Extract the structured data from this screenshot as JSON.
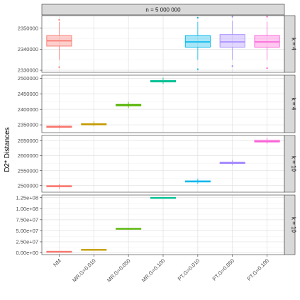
{
  "chart_data": {
    "type": "boxplot",
    "title": "n = 5 000 000",
    "ylabel": "D2* Distances",
    "xlabel": "",
    "categories": [
      "NM",
      "MR.G=0.010",
      "MR.G=0.050",
      "MR.G=0.100",
      "PT.G=0.010",
      "PT.G=0.050",
      "PT.G=0.100"
    ],
    "colors": [
      "#F8766D",
      "#C49A00",
      "#53B400",
      "#00C094",
      "#00B6EB",
      "#A58AFF",
      "#FB61D7"
    ],
    "grid": true,
    "legend": "none",
    "panels": [
      {
        "strip": "k = 4",
        "ylim": [
          2329000,
          2356000
        ],
        "yticks": [
          {
            "value": 2330000,
            "label": "2330000"
          },
          {
            "value": 2340000,
            "label": "2340000"
          },
          {
            "value": 2350000,
            "label": "2350000"
          }
        ],
        "boxes": [
          {
            "category": "NM",
            "low": 2335000,
            "q1": 2341500,
            "median": 2344000,
            "q3": 2346500,
            "high": 2353000,
            "outliers": [
              2354000,
              2331500
            ]
          },
          {
            "category": "PT.G=0.010",
            "low": 2335000,
            "q1": 2341000,
            "median": 2343500,
            "q3": 2346500,
            "high": 2353000,
            "outliers": [
              2355000,
              2330500
            ]
          },
          {
            "category": "PT.G=0.050",
            "low": 2335000,
            "q1": 2341000,
            "median": 2343500,
            "q3": 2347000,
            "high": 2353500,
            "outliers": [
              2355500,
              2332000
            ]
          },
          {
            "category": "PT.G=0.100",
            "low": 2335000,
            "q1": 2341000,
            "median": 2343500,
            "q3": 2346500,
            "high": 2353000,
            "outliers": [
              2355500,
              2331000
            ]
          }
        ]
      },
      {
        "strip": "k = 4",
        "ylim": [
          2325000,
          2510000
        ],
        "yticks": [
          {
            "value": 2350000,
            "label": "2350000"
          },
          {
            "value": 2400000,
            "label": "2400000"
          },
          {
            "value": 2450000,
            "label": "2450000"
          },
          {
            "value": 2500000,
            "label": "2500000"
          }
        ],
        "boxes": [
          {
            "category": "NM",
            "low": 2338000,
            "q1": 2342000,
            "median": 2344000,
            "q3": 2346000,
            "high": 2350000,
            "outliers": []
          },
          {
            "category": "MR.G=0.010",
            "low": 2346000,
            "q1": 2350000,
            "median": 2352000,
            "q3": 2354000,
            "high": 2362000,
            "outliers": []
          },
          {
            "category": "MR.G=0.050",
            "low": 2404000,
            "q1": 2411000,
            "median": 2414000,
            "q3": 2416000,
            "high": 2424000,
            "outliers": []
          },
          {
            "category": "MR.G=0.100",
            "low": 2482000,
            "q1": 2488000,
            "median": 2490000,
            "q3": 2493000,
            "high": 2502000,
            "outliers": []
          }
        ]
      },
      {
        "strip": "k = 10",
        "ylim": [
          2478000,
          2668000
        ],
        "yticks": [
          {
            "value": 2500000,
            "label": "2500000"
          },
          {
            "value": 2550000,
            "label": "2550000"
          },
          {
            "value": 2600000,
            "label": "2600000"
          },
          {
            "value": 2650000,
            "label": "2650000"
          }
        ],
        "boxes": [
          {
            "category": "NM",
            "low": 2490000,
            "q1": 2496000,
            "median": 2498000,
            "q3": 2500000,
            "high": 2506000,
            "outliers": []
          },
          {
            "category": "PT.G=0.010",
            "low": 2506000,
            "q1": 2512000,
            "median": 2514000,
            "q3": 2516000,
            "high": 2524000,
            "outliers": []
          },
          {
            "category": "PT.G=0.050",
            "low": 2568000,
            "q1": 2574000,
            "median": 2576000,
            "q3": 2579000,
            "high": 2586000,
            "outliers": []
          },
          {
            "category": "PT.G=0.100",
            "low": 2640000,
            "q1": 2646000,
            "median": 2648000,
            "q3": 2652000,
            "high": 2660000,
            "outliers": []
          }
        ]
      },
      {
        "strip": "k = 10",
        "ylim": [
          -4000000,
          131000000
        ],
        "yticks": [
          {
            "value": 0,
            "label": "0.00e+00"
          },
          {
            "value": 25000000,
            "label": "2.50e+07"
          },
          {
            "value": 50000000,
            "label": "5.00e+07"
          },
          {
            "value": 75000000,
            "label": "7.50e+07"
          },
          {
            "value": 100000000,
            "label": "1.00e+08"
          },
          {
            "value": 125000000,
            "label": "1.25e+08"
          }
        ],
        "boxes": [
          {
            "category": "NM",
            "low": 2480000,
            "q1": 2490000,
            "median": 2498000,
            "q3": 2506000,
            "high": 2515000,
            "outliers": []
          },
          {
            "category": "MR.G=0.010",
            "low": 6650000,
            "q1": 6750000,
            "median": 6800000,
            "q3": 6850000,
            "high": 6950000,
            "outliers": []
          },
          {
            "category": "MR.G=0.050",
            "low": 54200000,
            "q1": 54350000,
            "median": 54400000,
            "q3": 54450000,
            "high": 54600000,
            "outliers": []
          },
          {
            "category": "MR.G=0.100",
            "low": 124300000,
            "q1": 124450000,
            "median": 124500000,
            "q3": 124550000,
            "high": 124700000,
            "outliers": []
          }
        ]
      }
    ]
  }
}
